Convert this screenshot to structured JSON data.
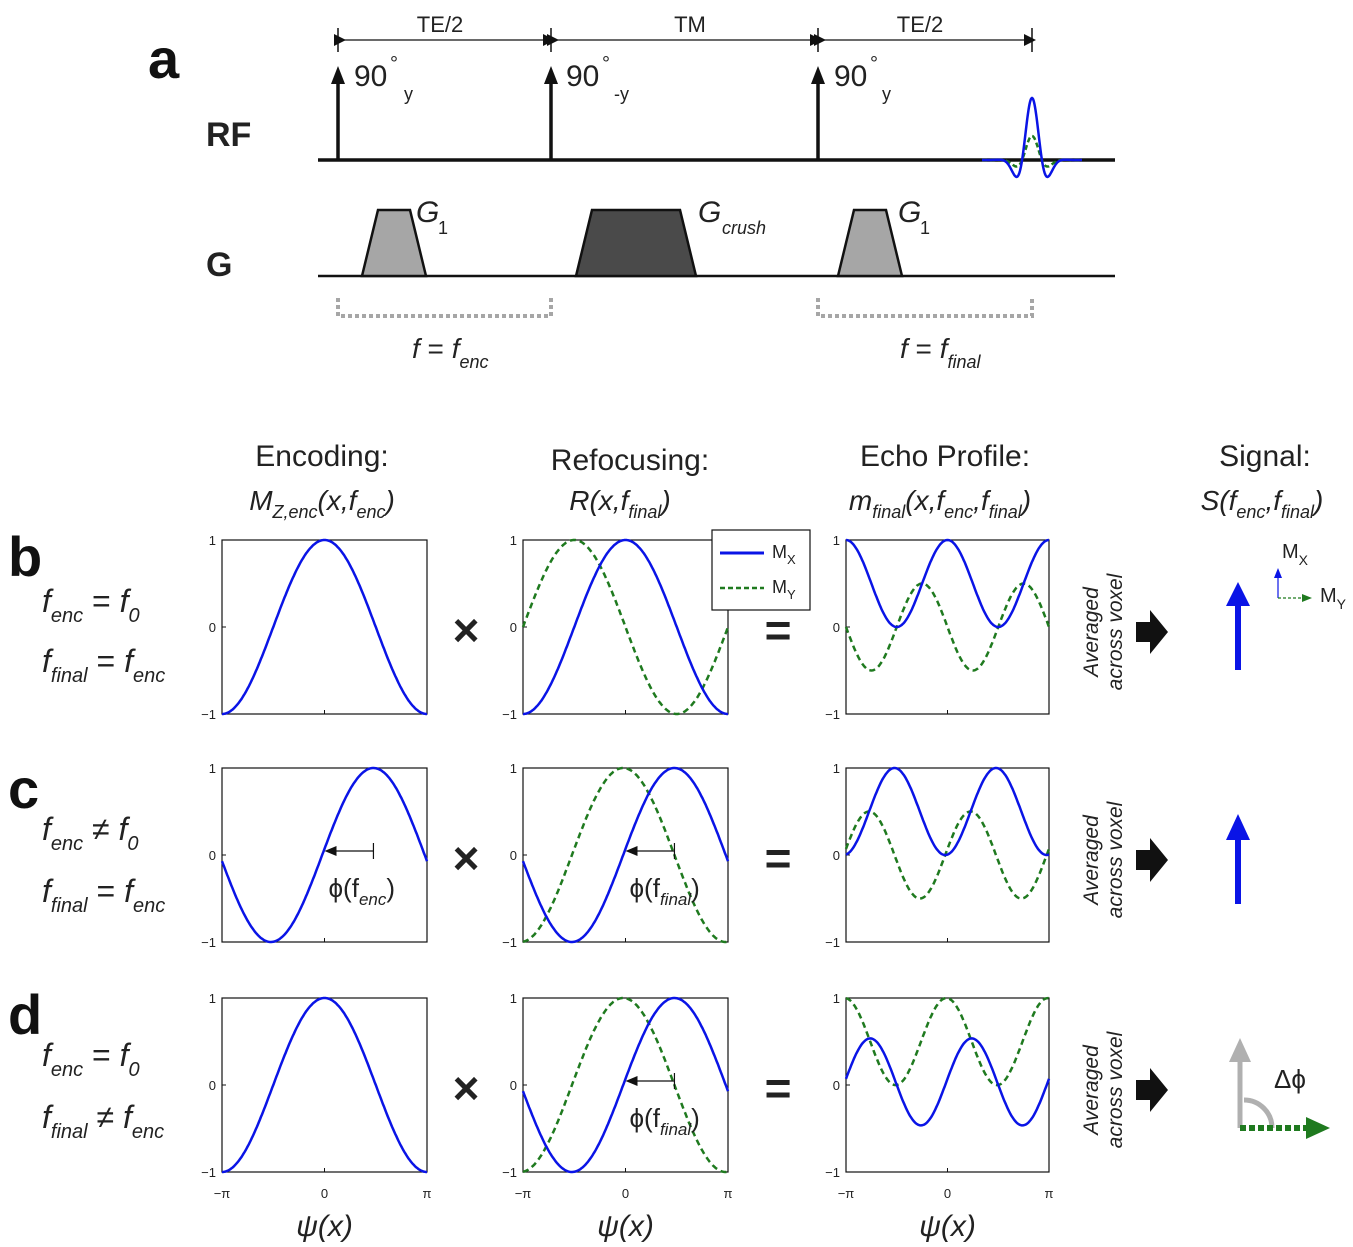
{
  "panels": {
    "a": {
      "letter": "a",
      "rf_label": "RF",
      "g_label": "G",
      "intervals": [
        "TE/2",
        "TM",
        "TE/2"
      ],
      "pulses": [
        {
          "main": "90",
          "deg": "°",
          "sub": "y"
        },
        {
          "main": "90",
          "deg": "°",
          "sub": "-y"
        },
        {
          "main": "90",
          "deg": "°",
          "sub": "y"
        }
      ],
      "gradients": [
        {
          "main": "G",
          "sub": "1"
        },
        {
          "main": "G",
          "sub": "crush"
        },
        {
          "main": "G",
          "sub": "1"
        }
      ],
      "freq_labels": [
        {
          "lhs": "f",
          "eq": " = ",
          "rhs": "f",
          "sub": "enc"
        },
        {
          "lhs": "f",
          "eq": " = ",
          "rhs": "f",
          "sub": "final"
        }
      ]
    },
    "b": {
      "letter": "b",
      "line1": {
        "a": "f",
        "asub": "enc",
        "op": " = ",
        "b": "f",
        "bsub": "0"
      },
      "line2": {
        "a": "f",
        "asub": "final",
        "op": " = ",
        "b": "f",
        "bsub": "enc"
      }
    },
    "c": {
      "letter": "c",
      "line1": {
        "a": "f",
        "asub": "enc",
        "op": " ≠ ",
        "b": "f",
        "bsub": "0"
      },
      "line2": {
        "a": "f",
        "asub": "final",
        "op": " = ",
        "b": "f",
        "bsub": "enc"
      }
    },
    "d": {
      "letter": "d",
      "line1": {
        "a": "f",
        "asub": "enc",
        "op": " = ",
        "b": "f",
        "bsub": "0"
      },
      "line2": {
        "a": "f",
        "asub": "final",
        "op": " ≠ ",
        "b": "f",
        "bsub": "enc"
      }
    }
  },
  "columns": {
    "encoding": {
      "title": "Encoding:",
      "expr": "M",
      "expr_sub": "Z,enc",
      "expr_rest": "(x,f",
      "expr_sub2": "enc",
      "expr_end": ")"
    },
    "refocusing": {
      "title": "Refocusing:",
      "expr": "R(x,f",
      "expr_sub": "final",
      "expr_end": ")"
    },
    "echo": {
      "title": "Echo Profile:",
      "expr": "m",
      "expr_sub": "final",
      "expr_rest": "(x,f",
      "expr_sub2": "enc",
      "expr_mid": ",f",
      "expr_sub3": "final",
      "expr_end": ")"
    },
    "signal": {
      "title": "Signal:",
      "expr": "S(f",
      "expr_sub": "enc",
      "expr_mid": ",f",
      "expr_sub2": "final",
      "expr_end": ")"
    }
  },
  "operators": {
    "times": "×",
    "equals": "="
  },
  "averaged_text": {
    "line1": "Averaged",
    "line2": "across voxel"
  },
  "legend": {
    "mx": "M",
    "mx_sub": "X",
    "my": "M",
    "my_sub": "Y"
  },
  "signal_axes": {
    "mx": "M",
    "mx_sub": "X",
    "my": "M",
    "my_sub": "Y"
  },
  "delta_phi": "Δϕ",
  "phi_annotations": {
    "c_enc": {
      "phi": "ϕ(f",
      "sub": "enc",
      "end": ")"
    },
    "c_ref": {
      "phi": "ϕ(f",
      "sub": "final",
      "end": ")"
    },
    "d_ref": {
      "phi": "ϕ(f",
      "sub": "final",
      "end": ")"
    }
  },
  "axis": {
    "yticks": [
      "1",
      "0",
      "−1"
    ],
    "xticks": [
      "−π",
      "0",
      "π"
    ],
    "xlabel": "ψ(x)"
  },
  "colors": {
    "mx": "#0a14e6",
    "my": "#1f7a1f",
    "black": "#111111",
    "grey_light": "#a6a6a6",
    "grey_dark": "#4a4a4a",
    "grey_arrow": "#b0b0b0"
  },
  "chart_data": [
    {
      "type": "line",
      "panel": "b",
      "column": "encoding",
      "x": "psi from -pi to pi",
      "series": [
        {
          "name": "M_X",
          "function": "cos(psi)"
        }
      ],
      "ylim": [
        -1,
        1
      ],
      "xlim": [
        -3.1416,
        3.1416
      ]
    },
    {
      "type": "line",
      "panel": "b",
      "column": "refocusing",
      "series": [
        {
          "name": "M_X",
          "function": "cos(psi)"
        },
        {
          "name": "M_Y",
          "function": "cos(psi + pi/2)*-1 ... shifted sine"
        }
      ],
      "ylim": [
        -1,
        1
      ]
    },
    {
      "type": "line",
      "panel": "b",
      "column": "echo",
      "series": [
        {
          "name": "M_X",
          "function": "cos(psi)^2"
        },
        {
          "name": "M_Y",
          "function": "cos(psi)*sin(psi)"
        }
      ],
      "ylim": [
        -1,
        1
      ]
    },
    {
      "type": "line",
      "panel": "c",
      "column": "encoding",
      "series": [
        {
          "name": "M_X",
          "function": "cos(psi - 1.5)"
        }
      ],
      "ylim": [
        -1,
        1
      ]
    },
    {
      "type": "line",
      "panel": "c",
      "column": "refocusing",
      "series": [
        {
          "name": "M_X",
          "function": "cos(psi - 1.5)"
        },
        {
          "name": "M_Y",
          "function": "shifted by -pi/2"
        }
      ],
      "ylim": [
        -1,
        1
      ]
    },
    {
      "type": "line",
      "panel": "c",
      "column": "echo",
      "series": [
        {
          "name": "M_X",
          "function": "cos(psi-1.5)^2"
        },
        {
          "name": "M_Y",
          "function": "product"
        }
      ],
      "ylim": [
        -1,
        1
      ]
    },
    {
      "type": "line",
      "panel": "d",
      "column": "encoding",
      "series": [
        {
          "name": "M_X",
          "function": "cos(psi)"
        }
      ],
      "ylim": [
        -1,
        1
      ]
    },
    {
      "type": "line",
      "panel": "d",
      "column": "refocusing",
      "series": [
        {
          "name": "M_X",
          "function": "cos(psi - 1.5)"
        },
        {
          "name": "M_Y",
          "function": "shifted"
        }
      ],
      "ylim": [
        -1,
        1
      ]
    },
    {
      "type": "line",
      "panel": "d",
      "column": "echo",
      "series": [
        {
          "name": "M_X",
          "function": "cos(psi)*cos(psi-1.5)"
        },
        {
          "name": "M_Y",
          "function": "cos(psi)*sin"
        }
      ],
      "ylim": [
        -1,
        1
      ]
    }
  ],
  "plot_params": {
    "b": {
      "enc_shift": 0,
      "ref_shift": 0
    },
    "c": {
      "enc_shift": 1.5,
      "ref_shift": 1.5
    },
    "d": {
      "enc_shift": 0,
      "ref_shift": 1.5
    }
  }
}
